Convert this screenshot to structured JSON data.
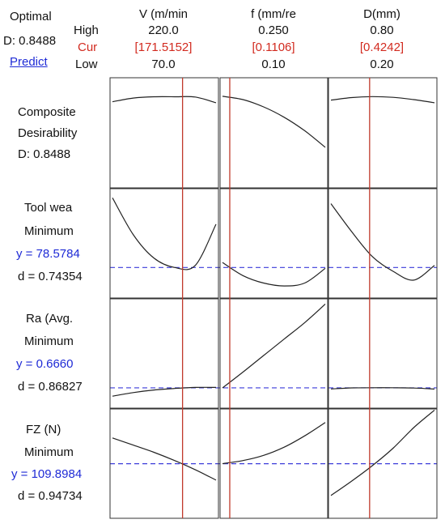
{
  "header": {
    "optimal_label": "Optimal",
    "d_label": "D: 0.8488",
    "predict_label": "Predict",
    "row_labels": {
      "high": "High",
      "cur": "Cur",
      "low": "Low"
    }
  },
  "factors": [
    {
      "name": "V (m/min",
      "high": "220.0",
      "cur": "[171.5152]",
      "low": "70.0"
    },
    {
      "name": "f (mm/re",
      "high": "0.250",
      "cur": "[0.1106]",
      "low": "0.10"
    },
    {
      "name": "D(mm)",
      "high": "0.80",
      "cur": "[0.4242]",
      "low": "0.20"
    }
  ],
  "responses": [
    {
      "title": "Composite",
      "subtitle": "Desirability",
      "goal": "",
      "y": "",
      "d": "D: 0.8488"
    },
    {
      "title": "Tool wea",
      "subtitle": "",
      "goal": "Minimum",
      "y": "y = 78.5784",
      "d": "d = 0.74354"
    },
    {
      "title": "Ra (Avg.",
      "subtitle": "",
      "goal": "Minimum",
      "y": "y = 0.6660",
      "d": "d = 0.86827"
    },
    {
      "title": "FZ (N)",
      "subtitle": "",
      "goal": "Minimum",
      "y": "y = 109.8984",
      "d": "d = 0.94734"
    }
  ],
  "colors": {
    "curve": "#222222",
    "current_line": "#c0392b",
    "reference_line": "#3b3bd9",
    "grid": "#333333",
    "blue_text": "#1f2bd6",
    "red_text": "#d22a1f"
  },
  "chart_data": {
    "type": "line",
    "title": "",
    "factors": [
      "V (m/min",
      "f (mm/re",
      "D(mm)"
    ],
    "factor_low": [
      70.0,
      0.1,
      0.2
    ],
    "factor_high": [
      220.0,
      0.25,
      0.8
    ],
    "factor_current": [
      171.5152,
      0.1106,
      0.4242
    ],
    "x_samples": [
      [
        70,
        100,
        130,
        160,
        190,
        220
      ],
      [
        0.1,
        0.13,
        0.16,
        0.19,
        0.22,
        0.25
      ],
      [
        0.2,
        0.32,
        0.44,
        0.56,
        0.68,
        0.8
      ]
    ],
    "rows": [
      {
        "name": "Composite Desirability",
        "ylim": [
          0,
          1
        ],
        "reference_y": null,
        "series": [
          [
            0.8,
            0.835,
            0.848,
            0.848,
            0.845,
            0.79
          ],
          [
            0.852,
            0.82,
            0.75,
            0.65,
            0.52,
            0.36
          ],
          [
            0.815,
            0.84,
            0.849,
            0.842,
            0.82,
            0.79
          ]
        ]
      },
      {
        "name": "Tool wea",
        "ylim": [
          60,
          130
        ],
        "reference_y": 78.5784,
        "series": [
          [
            126,
            101,
            85,
            78.6,
            80,
            108
          ],
          [
            82,
            73,
            68,
            66,
            68,
            78
          ],
          [
            122,
            103,
            86,
            76,
            70,
            80
          ]
        ]
      },
      {
        "name": "Ra (Avg.",
        "ylim": [
          0.5,
          1.5
        ],
        "reference_y": 0.666,
        "series": [
          [
            0.585,
            0.62,
            0.645,
            0.66,
            0.67,
            0.67
          ],
          [
            0.665,
            0.82,
            0.98,
            1.14,
            1.3,
            1.48
          ],
          [
            0.655,
            0.665,
            0.667,
            0.667,
            0.664,
            0.654
          ]
        ]
      },
      {
        "name": "FZ (N)",
        "ylim": [
          60,
          160
        ],
        "reference_y": 109.8984,
        "series": [
          [
            135,
            128,
            121,
            113,
            104,
            94
          ],
          [
            110,
            113,
            118,
            126,
            137,
            150
          ],
          [
            79,
            93,
            108,
            125,
            145,
            162
          ]
        ]
      }
    ]
  }
}
